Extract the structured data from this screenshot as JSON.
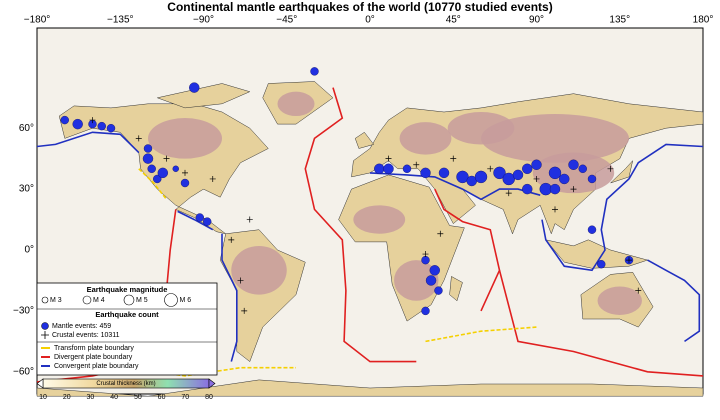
{
  "title": "Continental mantle earthquakes of the world (10770 studied events)",
  "longitude_labels": [
    "−180°",
    "−135°",
    "−90°",
    "−45°",
    "0°",
    "45°",
    "90°",
    "135°",
    "180°"
  ],
  "latitude_labels": [
    "60°",
    "30°",
    "0°",
    "−30°",
    "−60°"
  ],
  "legend": {
    "magnitude": {
      "title": "Earthquake magnitude",
      "items": [
        "M 3",
        "M 4",
        "M 5",
        "M 6"
      ]
    },
    "count": {
      "title": "Earthquake count",
      "items": [
        "Mantle events: 459",
        "Crustal events: 10311"
      ]
    },
    "boundaries": [
      "Transform plate boundary",
      "Divergent plate boundary",
      "Convergent plate boundary"
    ],
    "colorbar": {
      "title": "Crustal thickness (km)",
      "ticks": [
        10,
        20,
        30,
        40,
        50,
        60,
        70,
        80
      ]
    }
  }
}
